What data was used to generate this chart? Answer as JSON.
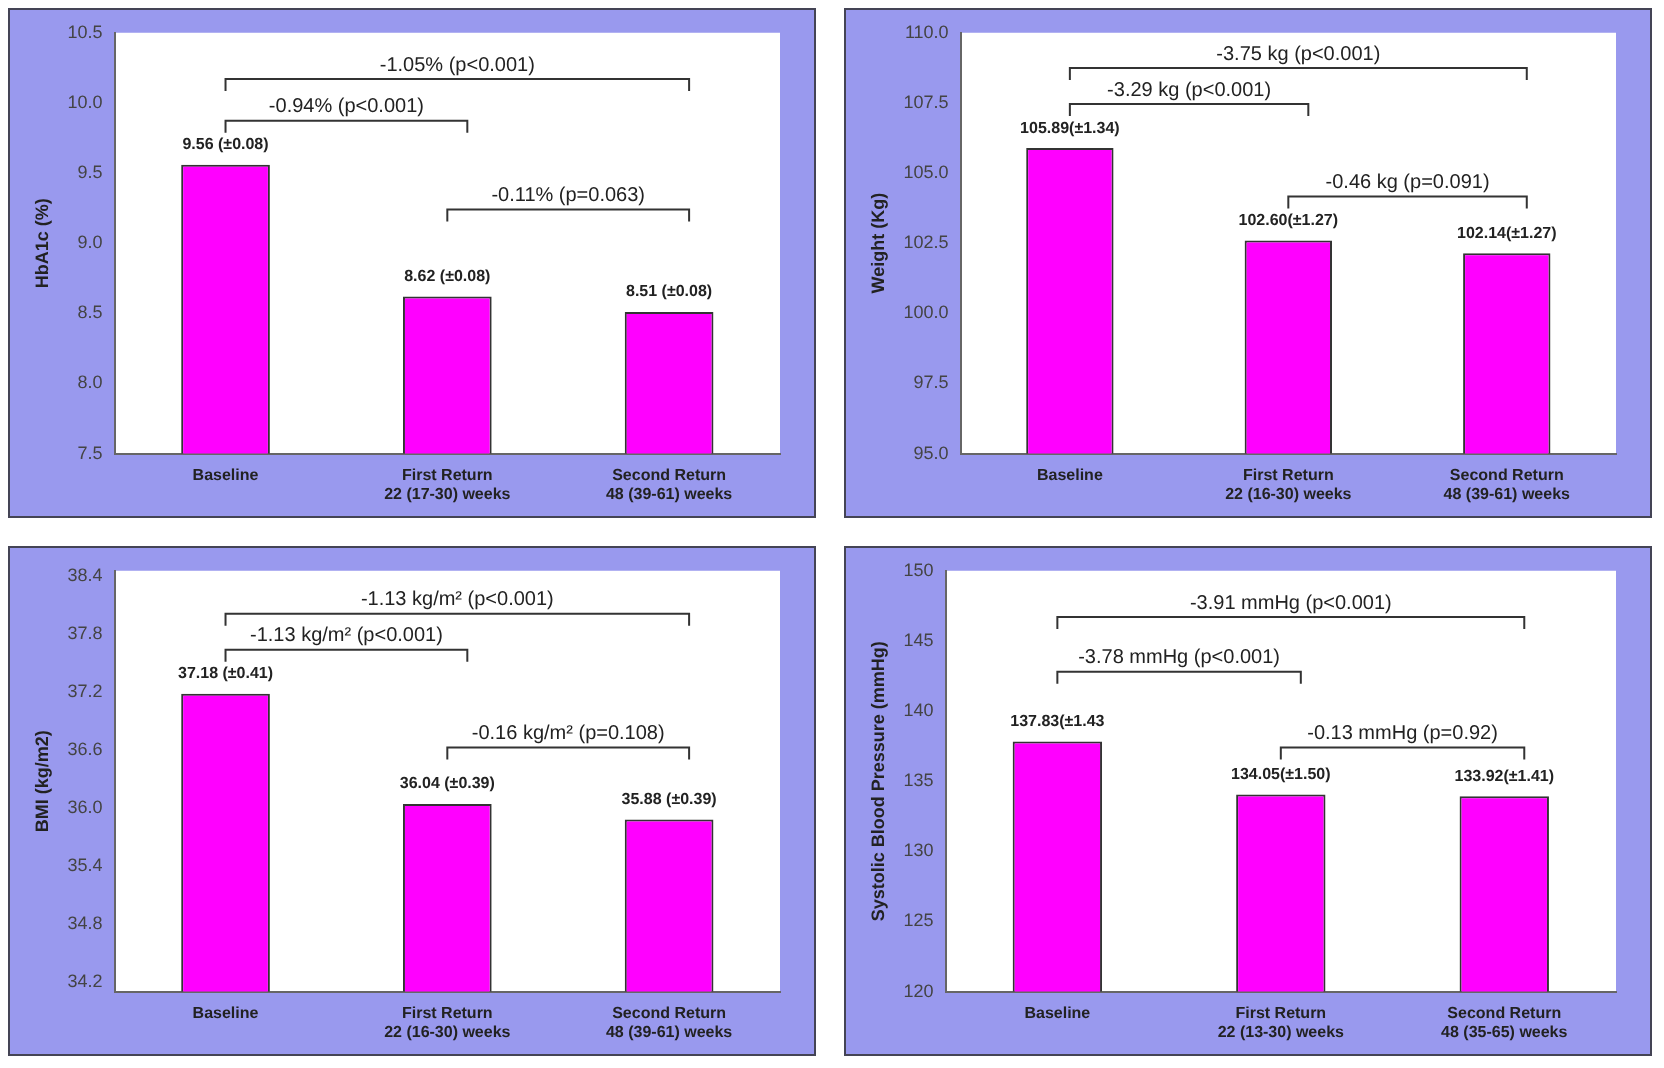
{
  "chart_data": [
    {
      "type": "bar",
      "ylabel": "HbA1c (%)",
      "categories": [
        "Baseline",
        "First Return\n22 (17-30) weeks",
        "Second Return\n48 (39-61) weeks"
      ],
      "values": [
        9.56,
        8.62,
        8.51
      ],
      "value_labels": [
        "9.56 (±0.08)",
        "8.62 (±0.08)",
        "8.51 (±0.08)"
      ],
      "color": "#ff00ff",
      "ylim": [
        7.5,
        10.5
      ],
      "yticks": [
        7.5,
        {
          "value": 8,
          "label": "8.0"
        },
        8.5,
        {
          "value": 9,
          "label": "9.0"
        },
        9.5,
        {
          "value": 10,
          "label": "10.0"
        },
        10.5
      ],
      "grid": false,
      "legend": false,
      "annotations": [
        "-1.05% (p<0.001)",
        "-0.94% (p<0.001)",
        "-0.11% (p=0.063)"
      ]
    },
    {
      "type": "bar",
      "ylabel": "Weight (Kg)",
      "categories": [
        "Baseline",
        "First Return\n22 (16-30) weeks",
        "Second Return\n48 (39-61) weeks"
      ],
      "values": [
        105.89,
        102.6,
        102.14
      ],
      "value_labels": [
        "105.89(±1.34)",
        "102.60(±1.27)",
        "102.14(±1.27)"
      ],
      "color": "#ff00ff",
      "ylim": [
        95,
        110
      ],
      "yticks": [
        {
          "value": 95,
          "label": "95.0"
        },
        97.5,
        {
          "value": 100,
          "label": "100.0"
        },
        102.5,
        {
          "value": 105,
          "label": "105.0"
        },
        107.5,
        {
          "value": 110,
          "label": "110.0"
        }
      ],
      "grid": false,
      "legend": false,
      "annotations": [
        "-3.75 kg (p<0.001)",
        "-3.29 kg (p<0.001)",
        "-0.46 kg (p=0.091)"
      ]
    },
    {
      "type": "bar",
      "ylabel": "BMI (kg/m2)",
      "categories": [
        "Baseline",
        "First Return\n22 (16-30) weeks",
        "Second Return\n48 (39-61) weeks"
      ],
      "values": [
        37.18,
        36.04,
        35.88
      ],
      "value_labels": [
        "37.18 (±0.41)",
        "36.04 (±0.39)",
        "35.88 (±0.39)"
      ],
      "color": "#ff00ff",
      "ylim": [
        34.1,
        38.45
      ],
      "yticks": [
        34.2,
        34.8,
        35.4,
        {
          "value": 36,
          "label": "36.0"
        },
        36.6,
        37.2,
        37.8,
        38.4
      ],
      "grid": false,
      "legend": false,
      "annotations": [
        "-1.13 kg/m² (p<0.001)",
        "-1.13 kg/m² (p<0.001)",
        "-0.16 kg/m² (p=0.108)"
      ]
    },
    {
      "type": "bar",
      "ylabel": "Systolic Blood Pressure (mmHg)",
      "categories": [
        "Baseline",
        "First Return\n22 (13-30) weeks",
        "Second Return\n48 (35-65) weeks"
      ],
      "values": [
        137.83,
        134.05,
        133.92
      ],
      "value_labels": [
        "137.83(±1.43",
        "134.05(±1.50)",
        "133.92(±1.41)"
      ],
      "color": "#ff00ff",
      "ylim": [
        120,
        150
      ],
      "yticks": [
        120,
        125,
        130,
        135,
        140,
        145,
        150
      ],
      "grid": false,
      "legend": false,
      "annotations": [
        "-3.91 mmHg (p<0.001)",
        "-3.78 mmHg (p<0.001)",
        "-0.13 mmHg (p=0.92)"
      ]
    }
  ]
}
